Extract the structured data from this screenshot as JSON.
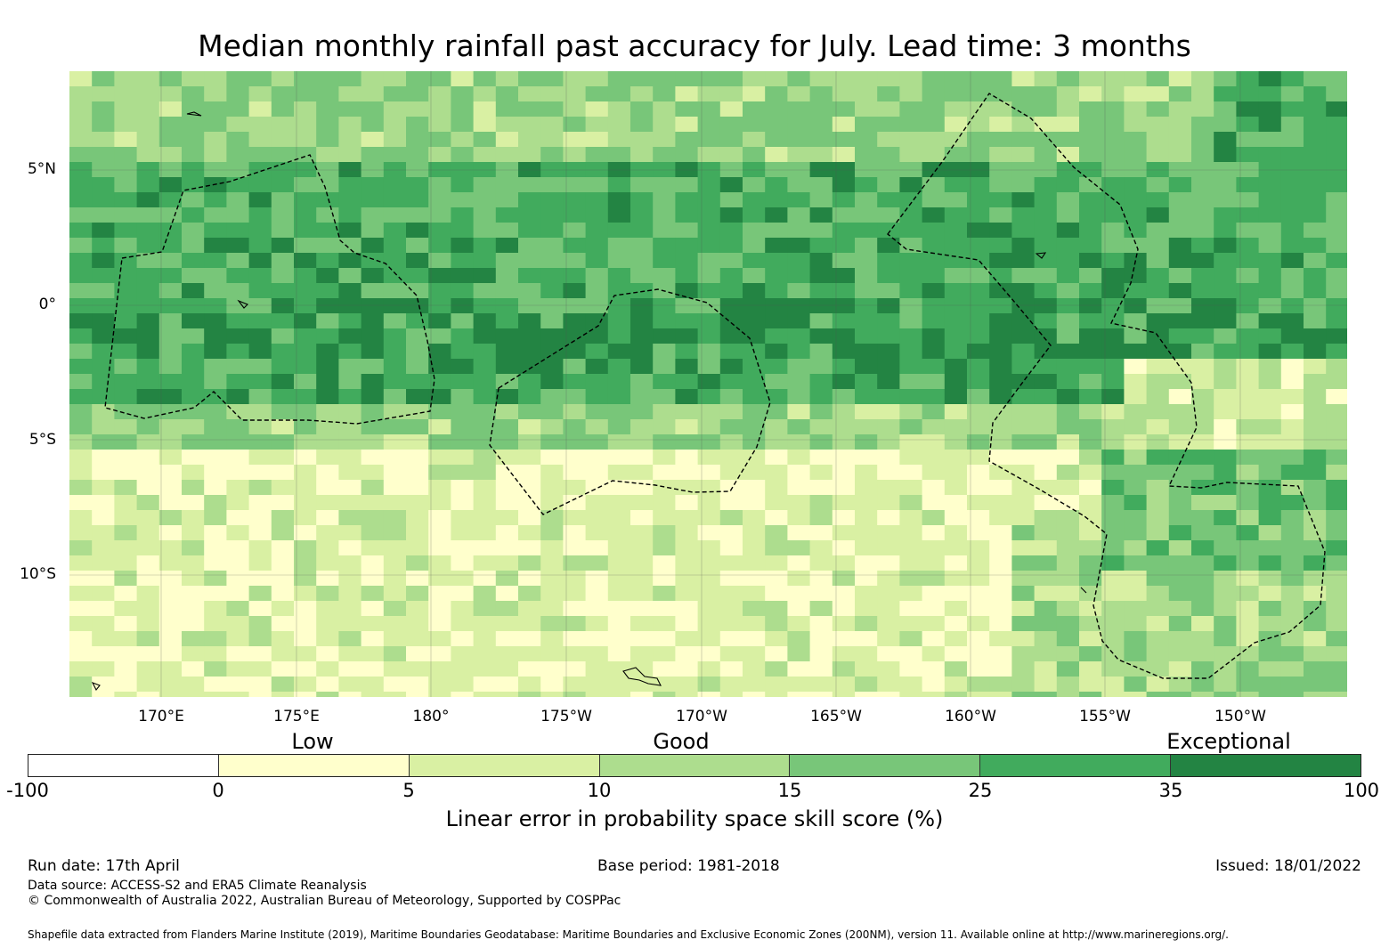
{
  "title": "Median monthly rainfall past accuracy for July. Lead time: 3 months",
  "map": {
    "lat_labels": [
      "5°N",
      "0°",
      "5°S",
      "10°S"
    ],
    "lon_labels": [
      "170°E",
      "175°E",
      "180°",
      "175°W",
      "170°W",
      "165°W",
      "160°W",
      "155°W",
      "150°W"
    ]
  },
  "categories": {
    "low": "Low",
    "good": "Good",
    "exceptional": "Exceptional"
  },
  "colorbar": {
    "ticks": [
      "-100",
      "0",
      "5",
      "10",
      "15",
      "25",
      "35",
      "100"
    ],
    "colors": [
      "#ffffff",
      "#ffffcc",
      "#d9f0a3",
      "#addd8e",
      "#78c679",
      "#41ab5d",
      "#238443"
    ],
    "label": "Linear error in probability space skill score (%)"
  },
  "footer": {
    "run_date": "Run date: 17th April",
    "base_period": "Base period: 1981-2018",
    "issued": "Issued: 18/01/2022",
    "data_source": "Data source: ACCESS-S2 and ERA5 Climate Reanalysis",
    "copyright": "© Commonwealth of Australia 2022, Australian Bureau of Meteorology, Supported by COSPPac",
    "shapefile": "Shapefile data extracted from Flanders Marine Institute (2019), Maritime Boundaries Geodatabase: Maritime Boundaries and Exclusive Economic Zones (200NM), version 11. Available online at http://www.marineregions.org/."
  }
}
